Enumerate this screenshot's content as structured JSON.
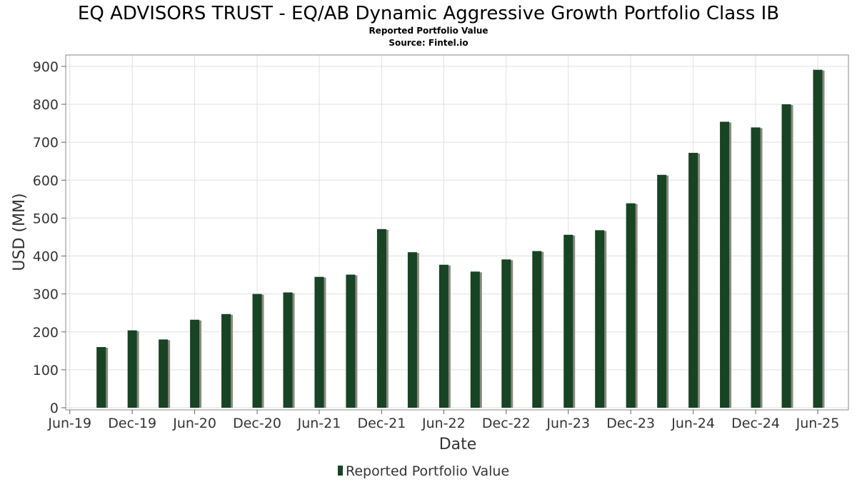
{
  "title": "EQ ADVISORS TRUST - EQ/AB Dynamic Aggressive Growth Portfolio Class IB",
  "subtitle": "Reported Portfolio Value",
  "source": "Source: Fintel.io",
  "colors": {
    "bar": "#174423",
    "shadow": "#8a8a80",
    "grid": "#e0e0e0",
    "frame": "#888888"
  },
  "chart_data": {
    "type": "bar",
    "title": "EQ ADVISORS TRUST - EQ/AB Dynamic Aggressive Growth Portfolio Class IB",
    "subtitle": "Reported Portfolio Value",
    "xlabel": "Date",
    "ylabel": "USD (MM)",
    "ylim": [
      0,
      930
    ],
    "yticks": [
      0,
      100,
      200,
      300,
      400,
      500,
      600,
      700,
      800,
      900
    ],
    "xlim": [
      "2019-05-20",
      "2025-08-30"
    ],
    "xticks": [
      {
        "label": "Jun-19",
        "date": "2019-06-01"
      },
      {
        "label": "Dec-19",
        "date": "2019-12-01"
      },
      {
        "label": "Jun-20",
        "date": "2020-06-01"
      },
      {
        "label": "Dec-20",
        "date": "2020-12-01"
      },
      {
        "label": "Jun-21",
        "date": "2021-06-01"
      },
      {
        "label": "Dec-21",
        "date": "2021-12-01"
      },
      {
        "label": "Jun-22",
        "date": "2022-06-01"
      },
      {
        "label": "Dec-22",
        "date": "2022-12-01"
      },
      {
        "label": "Jun-23",
        "date": "2023-06-01"
      },
      {
        "label": "Dec-23",
        "date": "2023-12-01"
      },
      {
        "label": "Jun-24",
        "date": "2024-06-01"
      },
      {
        "label": "Dec-24",
        "date": "2024-12-01"
      },
      {
        "label": "Jun-25",
        "date": "2025-06-01"
      }
    ],
    "grid": true,
    "legend_position": "bottom",
    "series": [
      {
        "name": "Reported Portfolio Value",
        "points": [
          {
            "x": "2019-09-01",
            "y": 160
          },
          {
            "x": "2019-12-01",
            "y": 204
          },
          {
            "x": "2020-03-01",
            "y": 180
          },
          {
            "x": "2020-06-01",
            "y": 232
          },
          {
            "x": "2020-09-01",
            "y": 247
          },
          {
            "x": "2020-12-01",
            "y": 300
          },
          {
            "x": "2021-03-01",
            "y": 304
          },
          {
            "x": "2021-06-01",
            "y": 345
          },
          {
            "x": "2021-09-01",
            "y": 351
          },
          {
            "x": "2021-12-01",
            "y": 471
          },
          {
            "x": "2022-03-01",
            "y": 410
          },
          {
            "x": "2022-06-01",
            "y": 377
          },
          {
            "x": "2022-09-01",
            "y": 359
          },
          {
            "x": "2022-12-01",
            "y": 391
          },
          {
            "x": "2023-03-01",
            "y": 413
          },
          {
            "x": "2023-06-01",
            "y": 456
          },
          {
            "x": "2023-09-01",
            "y": 468
          },
          {
            "x": "2023-12-01",
            "y": 539
          },
          {
            "x": "2024-03-01",
            "y": 614
          },
          {
            "x": "2024-06-01",
            "y": 672
          },
          {
            "x": "2024-09-01",
            "y": 754
          },
          {
            "x": "2024-12-01",
            "y": 739
          },
          {
            "x": "2025-03-01",
            "y": 800
          },
          {
            "x": "2025-06-01",
            "y": 891
          }
        ]
      }
    ]
  }
}
